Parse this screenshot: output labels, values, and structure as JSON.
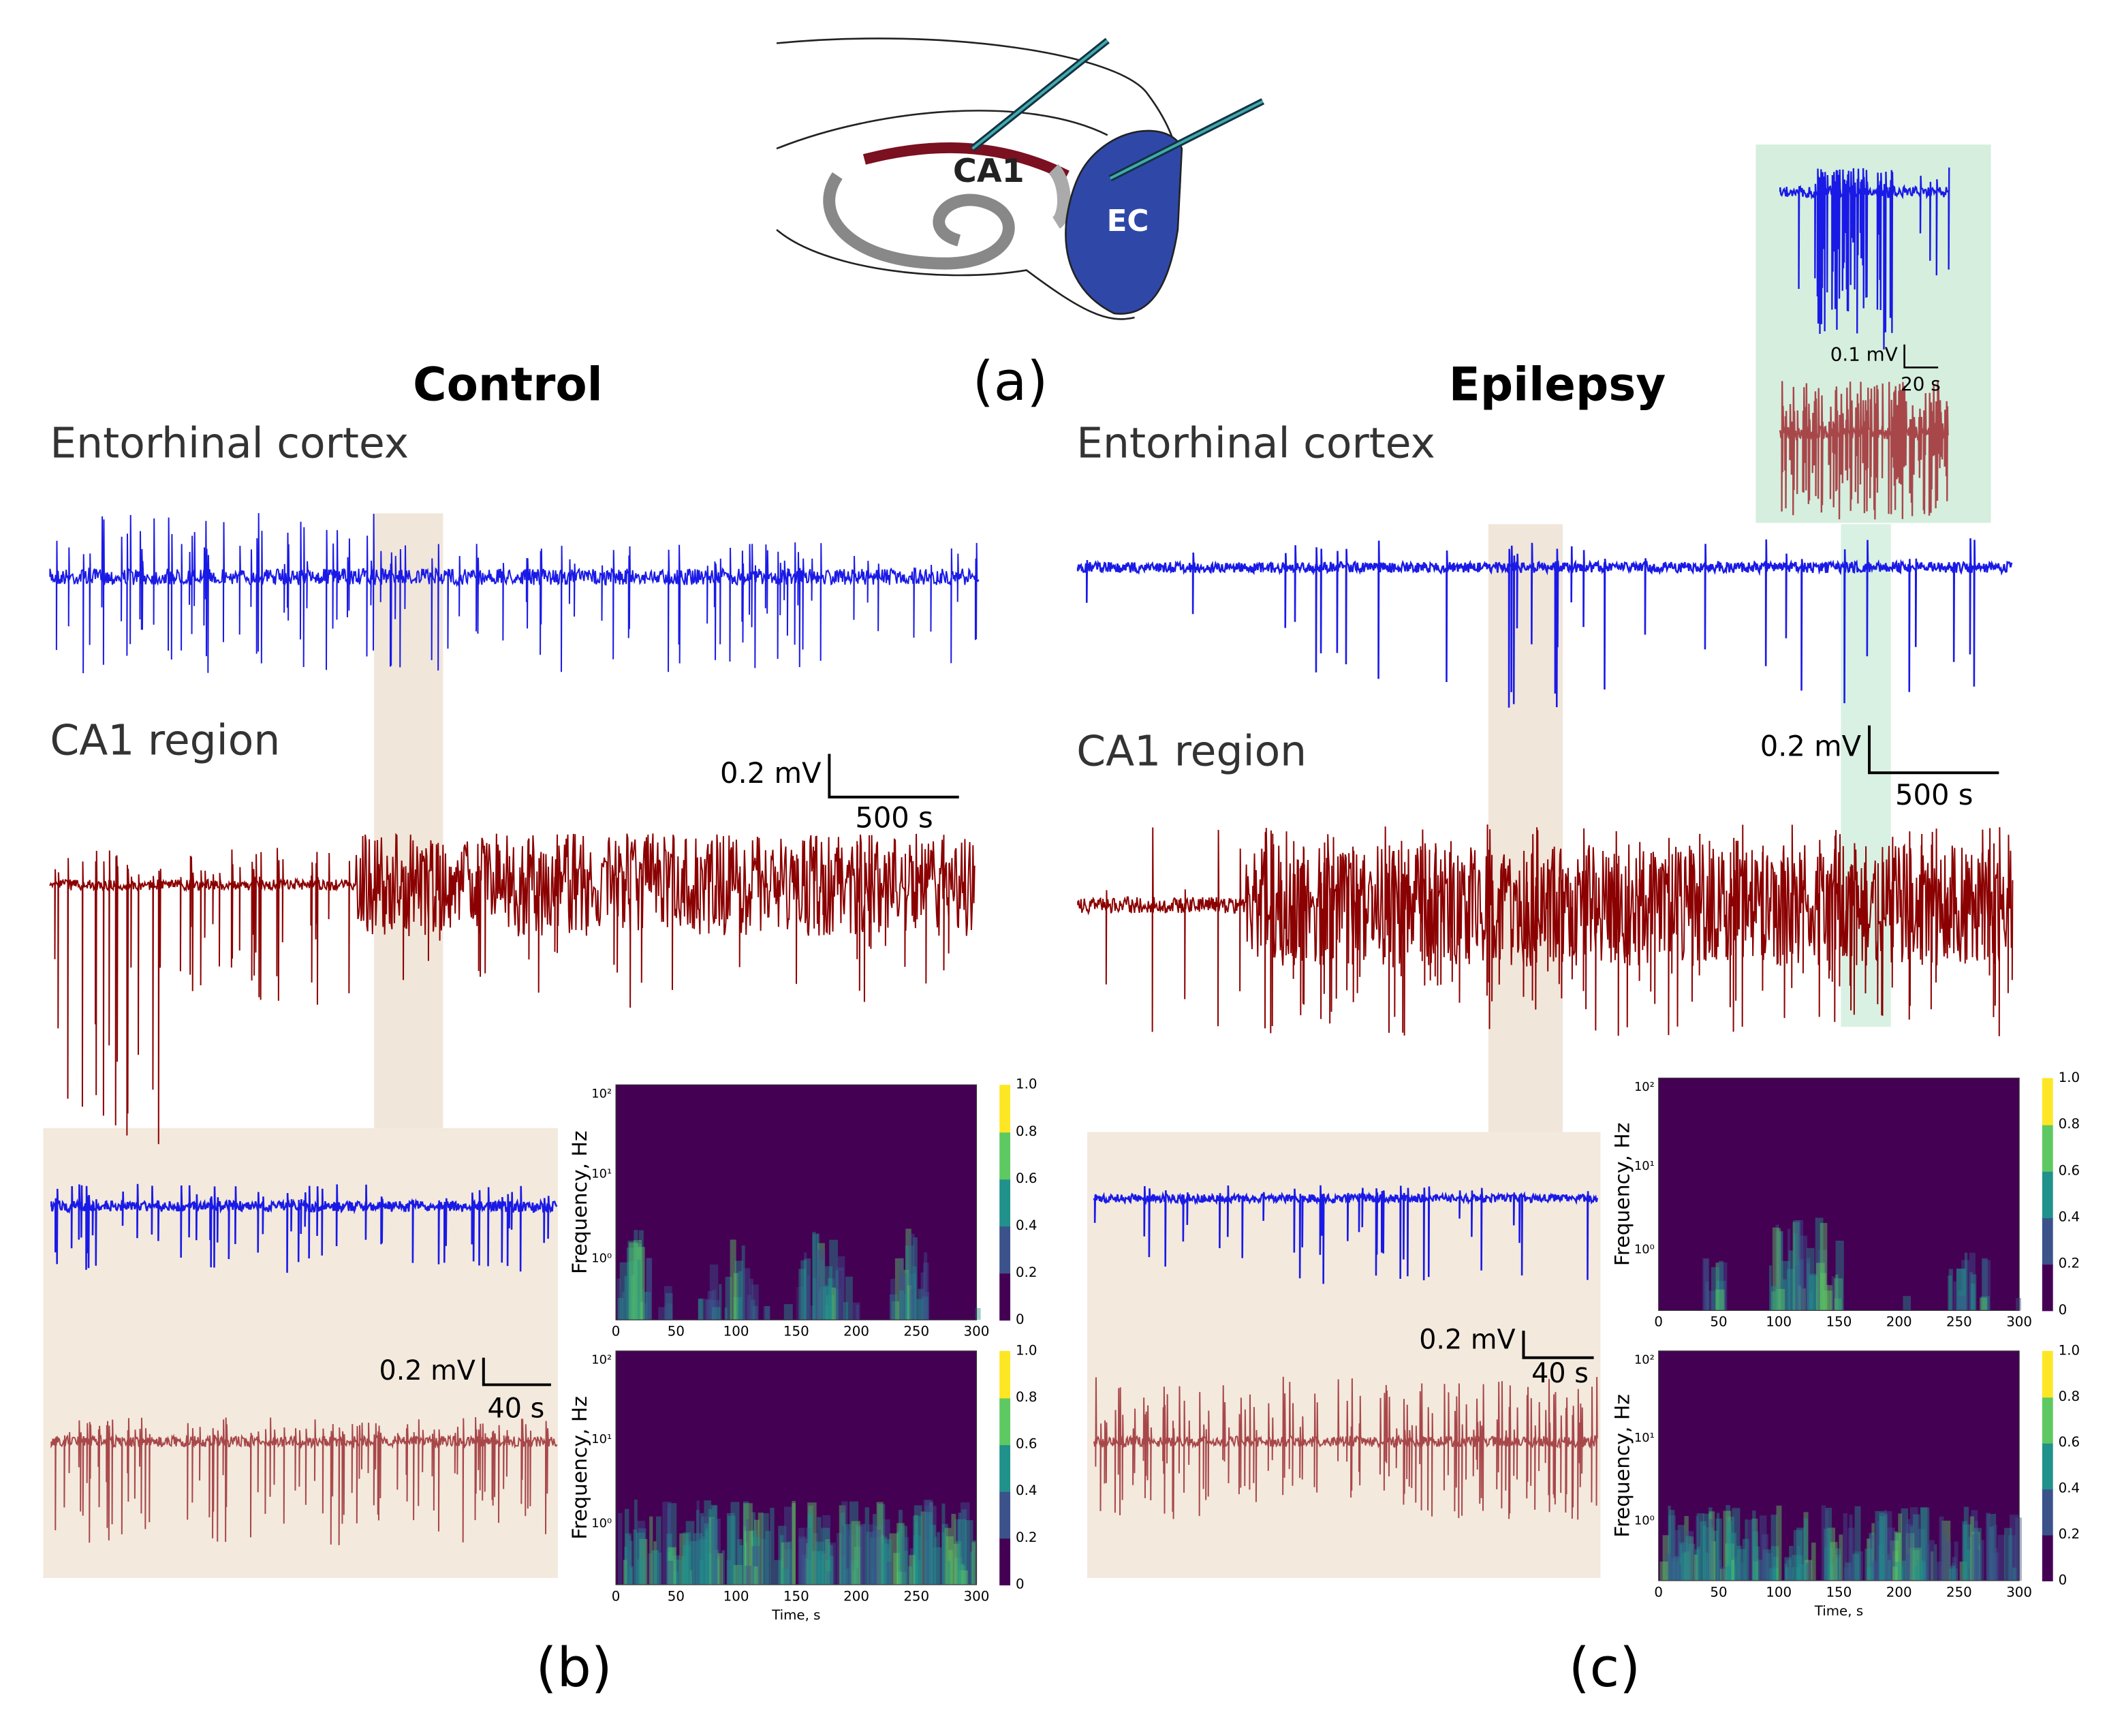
{
  "figure": {
    "panel_labels": [
      "(a)",
      "(b)",
      "(c)"
    ],
    "diagram_labels": [
      "CA1",
      "EC"
    ],
    "control": {
      "title": "Control",
      "ec_label": "Entorhinal cortex",
      "ca1_label": "CA1 region",
      "scale_main": {
        "v": "0.2 mV",
        "t": "500 s"
      },
      "scale_zoom": {
        "v": "0.2 mV",
        "t": "40 s"
      }
    },
    "epilepsy": {
      "title": "Epilepsy",
      "ec_label": "Entorhinal cortex",
      "ca1_label": "CA1 region",
      "scale_main": {
        "v": "0.2 mV",
        "t": "500 s"
      },
      "scale_zoom": {
        "v": "0.2 mV",
        "t": "40 s"
      },
      "scale_inset": {
        "v": "0.1 mV",
        "t": "20 s"
      }
    },
    "spectrogram": {
      "ylabel": "Frequency, Hz",
      "xlabel": "Time, s",
      "xticks": [
        "0",
        "50",
        "100",
        "150",
        "200",
        "250",
        "300"
      ],
      "yticks": [
        "10²",
        "10¹",
        "10⁰"
      ],
      "colorbar_ticks": [
        "1.0",
        "0.8",
        "0.6",
        "0.4",
        "0.2",
        "0"
      ]
    }
  }
}
